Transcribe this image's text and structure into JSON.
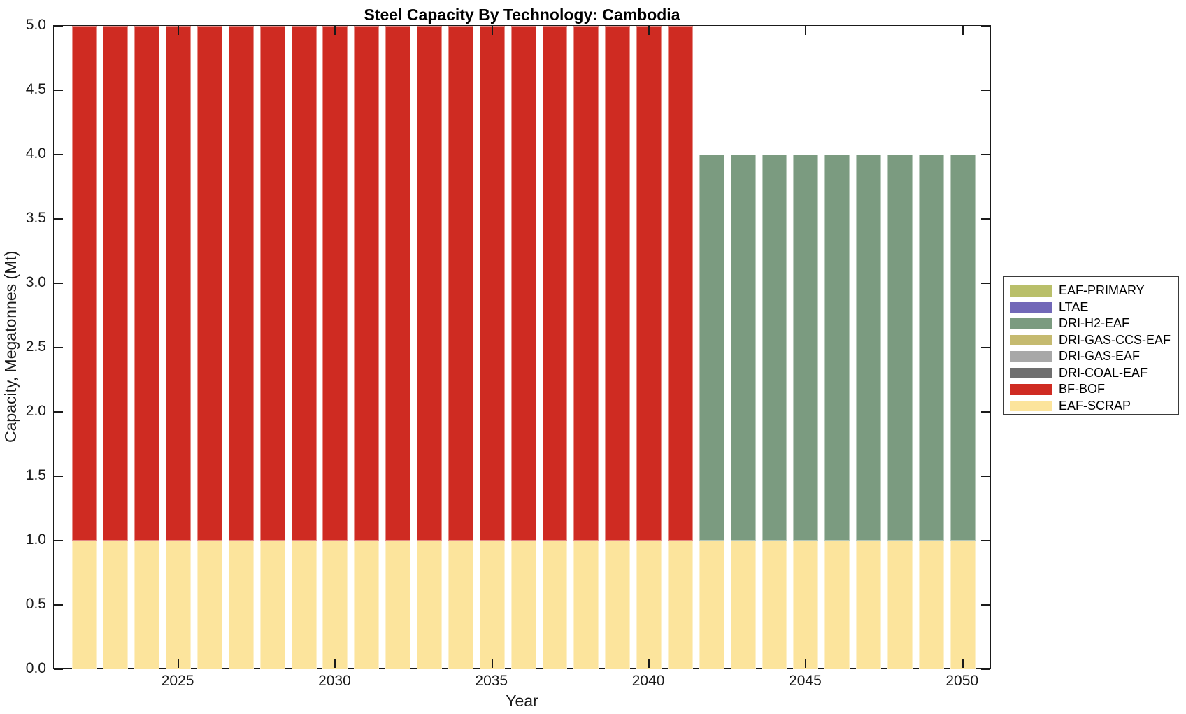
{
  "title": "Steel Capacity By Technology: Cambodia",
  "chart_data": {
    "type": "bar",
    "stacked": true,
    "title": "Steel Capacity By Technology: Cambodia",
    "xlabel": "Year",
    "ylabel": "Capacity, Megatonnes (Mt)",
    "x": [
      2022,
      2023,
      2024,
      2025,
      2026,
      2027,
      2028,
      2029,
      2030,
      2031,
      2032,
      2033,
      2034,
      2035,
      2036,
      2037,
      2038,
      2039,
      2040,
      2041,
      2042,
      2043,
      2044,
      2045,
      2046,
      2047,
      2048,
      2049,
      2050
    ],
    "series": [
      {
        "name": "EAF-SCRAP",
        "color": "#fce49c",
        "values": [
          1,
          1,
          1,
          1,
          1,
          1,
          1,
          1,
          1,
          1,
          1,
          1,
          1,
          1,
          1,
          1,
          1,
          1,
          1,
          1,
          1,
          1,
          1,
          1,
          1,
          1,
          1,
          1,
          1
        ]
      },
      {
        "name": "BF-BOF",
        "color": "#cf2b22",
        "values": [
          4,
          4,
          4,
          4,
          4,
          4,
          4,
          4,
          4,
          4,
          4,
          4,
          4,
          4,
          4,
          4,
          4,
          4,
          4,
          4,
          0,
          0,
          0,
          0,
          0,
          0,
          0,
          0,
          0
        ]
      },
      {
        "name": "DRI-H2-EAF",
        "color": "#7b9b80",
        "values": [
          0,
          0,
          0,
          0,
          0,
          0,
          0,
          0,
          0,
          0,
          0,
          0,
          0,
          0,
          0,
          0,
          0,
          0,
          0,
          0,
          3,
          3,
          3,
          3,
          3,
          3,
          3,
          3,
          3
        ]
      }
    ],
    "stack_order": "bottom-to-top",
    "bar_width": 0.8,
    "xlim": [
      2021.03,
      2050.92
    ],
    "ylim": [
      0,
      5
    ],
    "xtick_values": [
      2025,
      2030,
      2035,
      2040,
      2045,
      2050
    ],
    "xtick_labels": [
      "2025",
      "2030",
      "2035",
      "2040",
      "2045",
      "2050"
    ],
    "ytick_values": [
      0,
      0.5,
      1,
      1.5,
      2,
      2.5,
      3,
      3.5,
      4,
      4.5,
      5
    ],
    "ytick_labels": [
      "0.0",
      "0.5",
      "1.0",
      "1.5",
      "2.0",
      "2.5",
      "3.0",
      "3.5",
      "4.0",
      "4.5",
      "5.0"
    ],
    "grid": false,
    "legend_position": "outside-right",
    "legend": [
      {
        "label": "EAF-PRIMARY",
        "color": "#b9bf6a"
      },
      {
        "label": "LTAE",
        "color": "#7268b8"
      },
      {
        "label": "DRI-H2-EAF",
        "color": "#7b9b80"
      },
      {
        "label": "DRI-GAS-CCS-EAF",
        "color": "#c5ba70"
      },
      {
        "label": "DRI-GAS-EAF",
        "color": "#a8a8a8"
      },
      {
        "label": "DRI-COAL-EAF",
        "color": "#6f6f6f"
      },
      {
        "label": "BF-BOF",
        "color": "#cf2b22"
      },
      {
        "label": "EAF-SCRAP",
        "color": "#fce49c"
      }
    ]
  }
}
